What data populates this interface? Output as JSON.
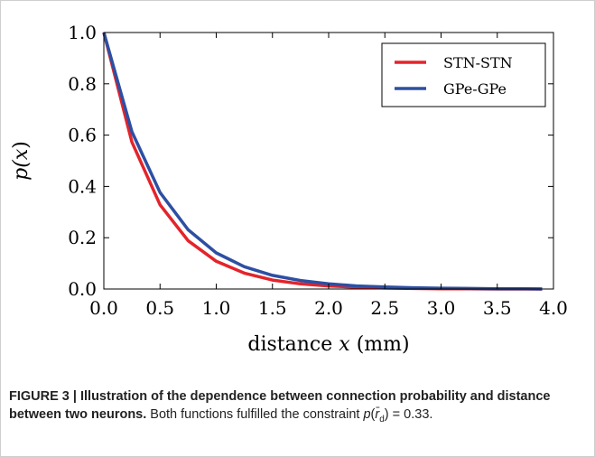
{
  "chart_data": {
    "type": "line",
    "xlabel_main": "distance",
    "xlabel_var": "x",
    "xlabel_unit": "(mm)",
    "ylabel_prefix": "p(",
    "ylabel_var": "x",
    "ylabel_suffix": ")",
    "xlim": [
      0.0,
      4.0
    ],
    "ylim": [
      0.0,
      1.0
    ],
    "x_ticks": [
      "0.0",
      "0.5",
      "1.0",
      "1.5",
      "2.0",
      "2.5",
      "3.0",
      "3.5",
      "4.0"
    ],
    "y_ticks": [
      "0.0",
      "0.2",
      "0.4",
      "0.6",
      "0.8",
      "1.0"
    ],
    "legend_position": "top-right",
    "grid": false,
    "series": [
      {
        "name": "STN-STN",
        "color": "#e3242b",
        "x": [
          0.0,
          0.25,
          0.5,
          0.75,
          1.0,
          1.25,
          1.5,
          1.75,
          2.0,
          2.25,
          2.5,
          2.75,
          3.0,
          3.25,
          3.5,
          3.75,
          3.9
        ],
        "y": [
          1.0,
          0.573,
          0.328,
          0.188,
          0.108,
          0.062,
          0.035,
          0.02,
          0.012,
          0.007,
          0.004,
          0.002,
          0.001,
          0.001,
          0.0,
          0.0,
          0.0
        ]
      },
      {
        "name": "GPe-GPe",
        "color": "#2d4fa3",
        "x": [
          0.0,
          0.25,
          0.5,
          0.75,
          1.0,
          1.25,
          1.5,
          1.75,
          2.0,
          2.25,
          2.5,
          2.75,
          3.0,
          3.25,
          3.5,
          3.75,
          3.9
        ],
        "y": [
          1.0,
          0.613,
          0.376,
          0.231,
          0.141,
          0.087,
          0.053,
          0.033,
          0.02,
          0.012,
          0.008,
          0.005,
          0.003,
          0.002,
          0.001,
          0.001,
          0.0
        ]
      }
    ]
  },
  "caption": {
    "title": "FIGURE 3 | Illustration of the dependence between connection probability and distance between two neurons.",
    "body_before": " Both functions fulfilled the constraint ",
    "formula_p": "p",
    "formula_open": "(",
    "formula_r": "r̄",
    "formula_sub": "d",
    "formula_close": ")",
    "formula_eq": " = 0.33."
  }
}
